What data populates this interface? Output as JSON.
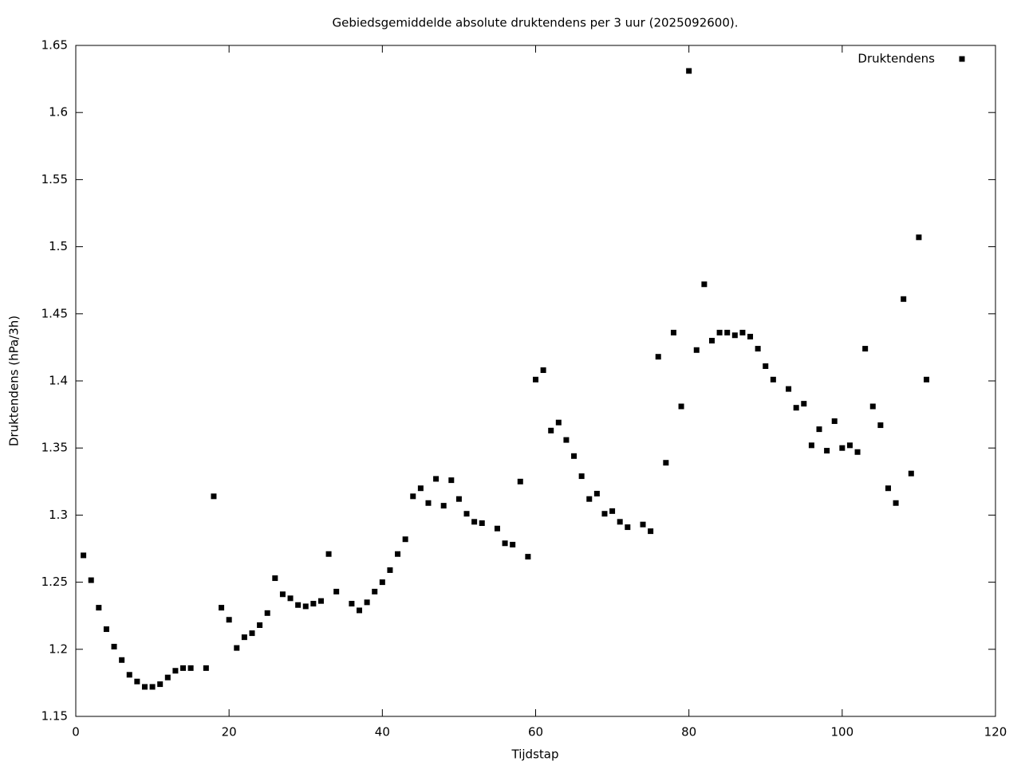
{
  "chart_data": {
    "type": "scatter",
    "title": "Gebiedsgemiddelde absolute druktendens per 3 uur (2025092600).",
    "x_label": "Tijdstap",
    "y_label": "Druktendens (hPa/3h)",
    "xlim": [
      0,
      120
    ],
    "xticks": [
      0,
      20,
      40,
      60,
      80,
      100,
      120
    ],
    "ylim": [
      1.15,
      1.65
    ],
    "yticks": [
      1.15,
      1.2,
      1.25,
      1.3,
      1.35,
      1.4,
      1.45,
      1.5,
      1.55,
      1.6,
      1.65
    ],
    "legend": "top-right",
    "series": [
      {
        "name": "Druktendens",
        "color": "#000000",
        "x": [
          1,
          2,
          3,
          4,
          5,
          6,
          7,
          8,
          9,
          10,
          11,
          12,
          13,
          14,
          15,
          17,
          18,
          19,
          20,
          21,
          22,
          23,
          24,
          25,
          26,
          27,
          28,
          29,
          30,
          31,
          32,
          33,
          34,
          36,
          37,
          38,
          39,
          40,
          41,
          42,
          43,
          44,
          45,
          46,
          47,
          48,
          49,
          50,
          51,
          52,
          53,
          55,
          56,
          57,
          58,
          59,
          60,
          61,
          62,
          63,
          64,
          65,
          66,
          67,
          68,
          69,
          70,
          71,
          72,
          74,
          75,
          76,
          77,
          78,
          79,
          80,
          81,
          82,
          83,
          84,
          85,
          86,
          87,
          88,
          89,
          90,
          91,
          93,
          94,
          95,
          96,
          97,
          98,
          99,
          100,
          101,
          102,
          103,
          104,
          105,
          106,
          107,
          108,
          109,
          110,
          111
        ],
        "values": [
          1.27,
          1.2515,
          1.231,
          1.215,
          1.202,
          1.192,
          1.181,
          1.176,
          1.172,
          1.172,
          1.174,
          1.179,
          1.184,
          1.186,
          1.186,
          1.186,
          1.314,
          1.231,
          1.222,
          1.201,
          1.209,
          1.212,
          1.218,
          1.227,
          1.253,
          1.241,
          1.238,
          1.233,
          1.232,
          1.234,
          1.236,
          1.271,
          1.243,
          1.234,
          1.229,
          1.235,
          1.243,
          1.25,
          1.259,
          1.271,
          1.282,
          1.314,
          1.32,
          1.309,
          1.327,
          1.307,
          1.326,
          1.312,
          1.301,
          1.295,
          1.294,
          1.29,
          1.279,
          1.278,
          1.325,
          1.269,
          1.401,
          1.408,
          1.363,
          1.369,
          1.356,
          1.344,
          1.329,
          1.312,
          1.316,
          1.301,
          1.303,
          1.295,
          1.291,
          1.293,
          1.288,
          1.418,
          1.339,
          1.436,
          1.381,
          1.631,
          1.423,
          1.472,
          1.43,
          1.436,
          1.436,
          1.434,
          1.436,
          1.433,
          1.424,
          1.411,
          1.401,
          1.394,
          1.38,
          1.383,
          1.352,
          1.364,
          1.348,
          1.37,
          1.35,
          1.352,
          1.347,
          1.424,
          1.381,
          1.367,
          1.32,
          1.309,
          1.461,
          1.331,
          1.507,
          1.401
        ]
      }
    ]
  }
}
